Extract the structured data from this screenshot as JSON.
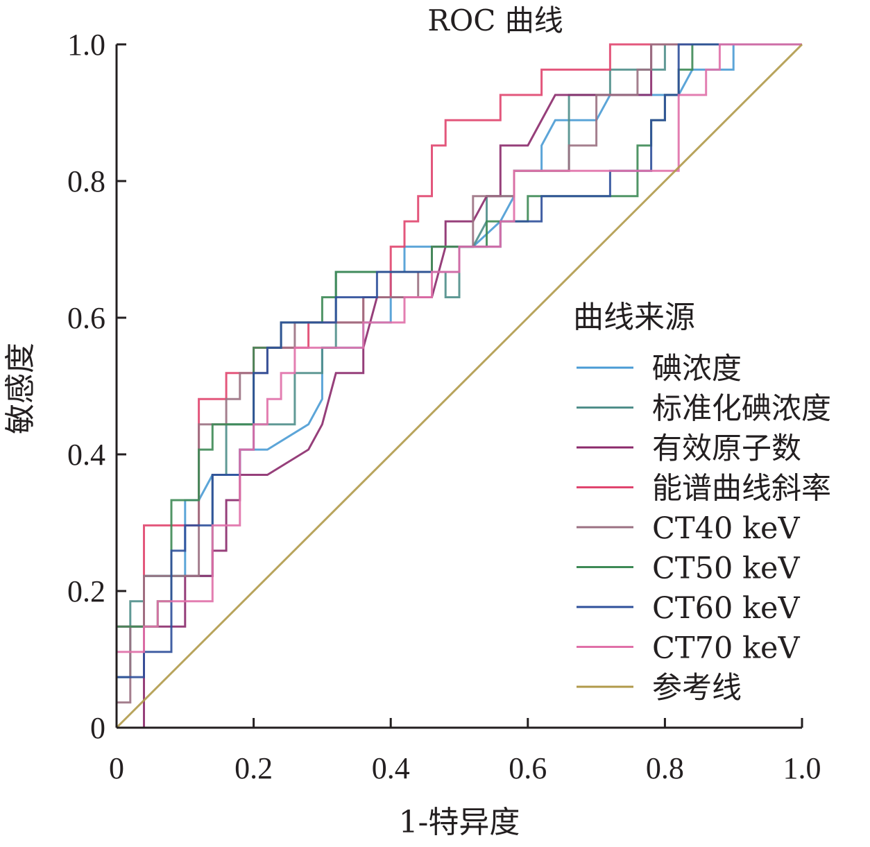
{
  "chart_data": {
    "type": "line",
    "title": "ROC 曲线",
    "xlabel": "1-特异度",
    "ylabel": "敏感度",
    "xlim": [
      0,
      1
    ],
    "ylim": [
      0,
      1
    ],
    "xticks": [
      0,
      0.2,
      0.4,
      0.6,
      0.8,
      1.0
    ],
    "xtick_labels": [
      "0",
      "0.2",
      "0.4",
      "0.6",
      "0.8",
      "1.0"
    ],
    "yticks": [
      0,
      0.2,
      0.4,
      0.6,
      0.8,
      1.0
    ],
    "ytick_labels": [
      "0",
      "0.2",
      "0.4",
      "0.6",
      "0.8",
      "1.0"
    ],
    "grid": false,
    "legend": {
      "title": "曲线来源",
      "position": "right"
    },
    "series": [
      {
        "name": "碘浓度",
        "color": "#4a9bd4",
        "points": [
          [
            0,
            0
          ],
          [
            0,
            0.148
          ],
          [
            0.04,
            0.148
          ],
          [
            0.04,
            0.222
          ],
          [
            0.1,
            0.222
          ],
          [
            0.1,
            0.333
          ],
          [
            0.12,
            0.333
          ],
          [
            0.14,
            0.37
          ],
          [
            0.18,
            0.37
          ],
          [
            0.18,
            0.407
          ],
          [
            0.22,
            0.407
          ],
          [
            0.28,
            0.444
          ],
          [
            0.3,
            0.481
          ],
          [
            0.3,
            0.556
          ],
          [
            0.36,
            0.556
          ],
          [
            0.36,
            0.593
          ],
          [
            0.4,
            0.593
          ],
          [
            0.4,
            0.667
          ],
          [
            0.42,
            0.667
          ],
          [
            0.42,
            0.704
          ],
          [
            0.5,
            0.704
          ],
          [
            0.52,
            0.704
          ],
          [
            0.56,
            0.741
          ],
          [
            0.58,
            0.778
          ],
          [
            0.58,
            0.815
          ],
          [
            0.62,
            0.815
          ],
          [
            0.62,
            0.852
          ],
          [
            0.64,
            0.889
          ],
          [
            0.7,
            0.889
          ],
          [
            0.72,
            0.926
          ],
          [
            0.82,
            0.926
          ],
          [
            0.84,
            0.963
          ],
          [
            0.9,
            0.963
          ],
          [
            0.9,
            1.0
          ],
          [
            1.0,
            1.0
          ]
        ]
      },
      {
        "name": "标准化碘浓度",
        "color": "#4f8e8a",
        "points": [
          [
            0,
            0
          ],
          [
            0,
            0.074
          ],
          [
            0.02,
            0.074
          ],
          [
            0.02,
            0.185
          ],
          [
            0.04,
            0.185
          ],
          [
            0.04,
            0.222
          ],
          [
            0.14,
            0.222
          ],
          [
            0.14,
            0.37
          ],
          [
            0.16,
            0.37
          ],
          [
            0.16,
            0.444
          ],
          [
            0.26,
            0.444
          ],
          [
            0.26,
            0.519
          ],
          [
            0.3,
            0.519
          ],
          [
            0.3,
            0.556
          ],
          [
            0.32,
            0.556
          ],
          [
            0.32,
            0.667
          ],
          [
            0.48,
            0.667
          ],
          [
            0.48,
            0.63
          ],
          [
            0.5,
            0.63
          ],
          [
            0.5,
            0.704
          ],
          [
            0.52,
            0.704
          ],
          [
            0.54,
            0.741
          ],
          [
            0.54,
            0.778
          ],
          [
            0.58,
            0.778
          ],
          [
            0.58,
            0.815
          ],
          [
            0.66,
            0.815
          ],
          [
            0.66,
            0.926
          ],
          [
            0.72,
            0.926
          ],
          [
            0.72,
            0.963
          ],
          [
            0.8,
            0.963
          ],
          [
            0.8,
            1.0
          ],
          [
            1.0,
            1.0
          ]
        ]
      },
      {
        "name": "有效原子数",
        "color": "#8b2a6b",
        "points": [
          [
            0,
            0
          ],
          [
            0.04,
            0
          ],
          [
            0.04,
            0.148
          ],
          [
            0.1,
            0.148
          ],
          [
            0.1,
            0.222
          ],
          [
            0.14,
            0.222
          ],
          [
            0.14,
            0.259
          ],
          [
            0.16,
            0.259
          ],
          [
            0.16,
            0.333
          ],
          [
            0.18,
            0.333
          ],
          [
            0.18,
            0.37
          ],
          [
            0.22,
            0.37
          ],
          [
            0.28,
            0.407
          ],
          [
            0.3,
            0.444
          ],
          [
            0.32,
            0.519
          ],
          [
            0.36,
            0.519
          ],
          [
            0.36,
            0.556
          ],
          [
            0.38,
            0.63
          ],
          [
            0.46,
            0.63
          ],
          [
            0.48,
            0.704
          ],
          [
            0.48,
            0.741
          ],
          [
            0.52,
            0.741
          ],
          [
            0.54,
            0.778
          ],
          [
            0.56,
            0.778
          ],
          [
            0.56,
            0.852
          ],
          [
            0.6,
            0.852
          ],
          [
            0.64,
            0.926
          ],
          [
            0.78,
            0.926
          ],
          [
            0.78,
            1.0
          ],
          [
            1.0,
            1.0
          ]
        ]
      },
      {
        "name": "能谱曲线斜率",
        "color": "#e0456e",
        "points": [
          [
            0,
            0
          ],
          [
            0,
            0.148
          ],
          [
            0.04,
            0.148
          ],
          [
            0.04,
            0.296
          ],
          [
            0.12,
            0.296
          ],
          [
            0.12,
            0.481
          ],
          [
            0.16,
            0.481
          ],
          [
            0.16,
            0.519
          ],
          [
            0.2,
            0.519
          ],
          [
            0.2,
            0.556
          ],
          [
            0.28,
            0.556
          ],
          [
            0.28,
            0.593
          ],
          [
            0.36,
            0.593
          ],
          [
            0.36,
            0.63
          ],
          [
            0.4,
            0.63
          ],
          [
            0.4,
            0.704
          ],
          [
            0.42,
            0.704
          ],
          [
            0.42,
            0.741
          ],
          [
            0.44,
            0.741
          ],
          [
            0.44,
            0.778
          ],
          [
            0.46,
            0.778
          ],
          [
            0.46,
            0.852
          ],
          [
            0.48,
            0.852
          ],
          [
            0.48,
            0.889
          ],
          [
            0.56,
            0.889
          ],
          [
            0.56,
            0.926
          ],
          [
            0.62,
            0.926
          ],
          [
            0.62,
            0.963
          ],
          [
            0.72,
            0.963
          ],
          [
            0.72,
            1.0
          ],
          [
            1.0,
            1.0
          ]
        ]
      },
      {
        "name": "CT40 keV",
        "color": "#9b7182",
        "points": [
          [
            0,
            0
          ],
          [
            0,
            0.037
          ],
          [
            0.02,
            0.037
          ],
          [
            0.02,
            0.148
          ],
          [
            0.04,
            0.148
          ],
          [
            0.04,
            0.222
          ],
          [
            0.12,
            0.222
          ],
          [
            0.12,
            0.444
          ],
          [
            0.16,
            0.444
          ],
          [
            0.16,
            0.481
          ],
          [
            0.18,
            0.481
          ],
          [
            0.18,
            0.519
          ],
          [
            0.22,
            0.519
          ],
          [
            0.22,
            0.556
          ],
          [
            0.26,
            0.556
          ],
          [
            0.26,
            0.593
          ],
          [
            0.36,
            0.593
          ],
          [
            0.36,
            0.63
          ],
          [
            0.44,
            0.63
          ],
          [
            0.44,
            0.667
          ],
          [
            0.46,
            0.667
          ],
          [
            0.46,
            0.704
          ],
          [
            0.52,
            0.704
          ],
          [
            0.52,
            0.778
          ],
          [
            0.58,
            0.778
          ],
          [
            0.58,
            0.815
          ],
          [
            0.66,
            0.815
          ],
          [
            0.66,
            0.852
          ],
          [
            0.7,
            0.852
          ],
          [
            0.7,
            0.926
          ],
          [
            0.76,
            0.926
          ],
          [
            0.76,
            0.963
          ],
          [
            0.78,
            0.963
          ],
          [
            0.78,
            1.0
          ],
          [
            1.0,
            1.0
          ]
        ]
      },
      {
        "name": "CT50 keV",
        "color": "#3d8a55",
        "points": [
          [
            0,
            0
          ],
          [
            0,
            0.148
          ],
          [
            0.06,
            0.148
          ],
          [
            0.06,
            0.185
          ],
          [
            0.08,
            0.185
          ],
          [
            0.08,
            0.333
          ],
          [
            0.12,
            0.333
          ],
          [
            0.12,
            0.407
          ],
          [
            0.14,
            0.407
          ],
          [
            0.14,
            0.444
          ],
          [
            0.2,
            0.444
          ],
          [
            0.2,
            0.556
          ],
          [
            0.24,
            0.556
          ],
          [
            0.24,
            0.593
          ],
          [
            0.3,
            0.593
          ],
          [
            0.3,
            0.63
          ],
          [
            0.32,
            0.63
          ],
          [
            0.32,
            0.667
          ],
          [
            0.46,
            0.667
          ],
          [
            0.46,
            0.704
          ],
          [
            0.54,
            0.704
          ],
          [
            0.54,
            0.741
          ],
          [
            0.6,
            0.741
          ],
          [
            0.6,
            0.778
          ],
          [
            0.76,
            0.778
          ],
          [
            0.76,
            0.852
          ],
          [
            0.78,
            0.852
          ],
          [
            0.78,
            0.889
          ],
          [
            0.8,
            0.889
          ],
          [
            0.8,
            0.926
          ],
          [
            0.82,
            0.926
          ],
          [
            0.82,
            0.963
          ],
          [
            0.84,
            0.963
          ],
          [
            0.84,
            1.0
          ],
          [
            1.0,
            1.0
          ]
        ]
      },
      {
        "name": "CT60 keV",
        "color": "#2e4f9a",
        "points": [
          [
            0,
            0
          ],
          [
            0,
            0.074
          ],
          [
            0.04,
            0.074
          ],
          [
            0.04,
            0.111
          ],
          [
            0.08,
            0.111
          ],
          [
            0.08,
            0.259
          ],
          [
            0.1,
            0.259
          ],
          [
            0.1,
            0.296
          ],
          [
            0.14,
            0.296
          ],
          [
            0.14,
            0.37
          ],
          [
            0.18,
            0.37
          ],
          [
            0.18,
            0.407
          ],
          [
            0.2,
            0.407
          ],
          [
            0.2,
            0.519
          ],
          [
            0.22,
            0.519
          ],
          [
            0.22,
            0.556
          ],
          [
            0.24,
            0.556
          ],
          [
            0.24,
            0.593
          ],
          [
            0.32,
            0.593
          ],
          [
            0.32,
            0.63
          ],
          [
            0.38,
            0.63
          ],
          [
            0.38,
            0.667
          ],
          [
            0.5,
            0.667
          ],
          [
            0.5,
            0.704
          ],
          [
            0.56,
            0.704
          ],
          [
            0.56,
            0.741
          ],
          [
            0.62,
            0.741
          ],
          [
            0.62,
            0.778
          ],
          [
            0.72,
            0.778
          ],
          [
            0.72,
            0.815
          ],
          [
            0.78,
            0.815
          ],
          [
            0.78,
            0.889
          ],
          [
            0.8,
            0.889
          ],
          [
            0.8,
            0.926
          ],
          [
            0.82,
            0.926
          ],
          [
            0.82,
            1.0
          ],
          [
            1.0,
            1.0
          ]
        ]
      },
      {
        "name": "CT70 keV",
        "color": "#e070a8",
        "points": [
          [
            0,
            0
          ],
          [
            0,
            0.111
          ],
          [
            0.04,
            0.111
          ],
          [
            0.04,
            0.148
          ],
          [
            0.06,
            0.148
          ],
          [
            0.06,
            0.185
          ],
          [
            0.14,
            0.185
          ],
          [
            0.14,
            0.296
          ],
          [
            0.18,
            0.296
          ],
          [
            0.18,
            0.407
          ],
          [
            0.2,
            0.407
          ],
          [
            0.2,
            0.444
          ],
          [
            0.22,
            0.444
          ],
          [
            0.22,
            0.481
          ],
          [
            0.24,
            0.481
          ],
          [
            0.24,
            0.519
          ],
          [
            0.26,
            0.519
          ],
          [
            0.26,
            0.556
          ],
          [
            0.36,
            0.556
          ],
          [
            0.36,
            0.593
          ],
          [
            0.42,
            0.593
          ],
          [
            0.42,
            0.63
          ],
          [
            0.46,
            0.63
          ],
          [
            0.46,
            0.667
          ],
          [
            0.5,
            0.667
          ],
          [
            0.5,
            0.704
          ],
          [
            0.56,
            0.704
          ],
          [
            0.56,
            0.741
          ],
          [
            0.58,
            0.741
          ],
          [
            0.58,
            0.815
          ],
          [
            0.82,
            0.815
          ],
          [
            0.82,
            0.926
          ],
          [
            0.86,
            0.926
          ],
          [
            0.86,
            0.963
          ],
          [
            0.88,
            0.963
          ],
          [
            0.88,
            1.0
          ],
          [
            1.0,
            1.0
          ]
        ]
      },
      {
        "name": "参考线",
        "color": "#b09a4a",
        "points": [
          [
            0,
            0
          ],
          [
            1,
            1
          ]
        ]
      }
    ]
  }
}
